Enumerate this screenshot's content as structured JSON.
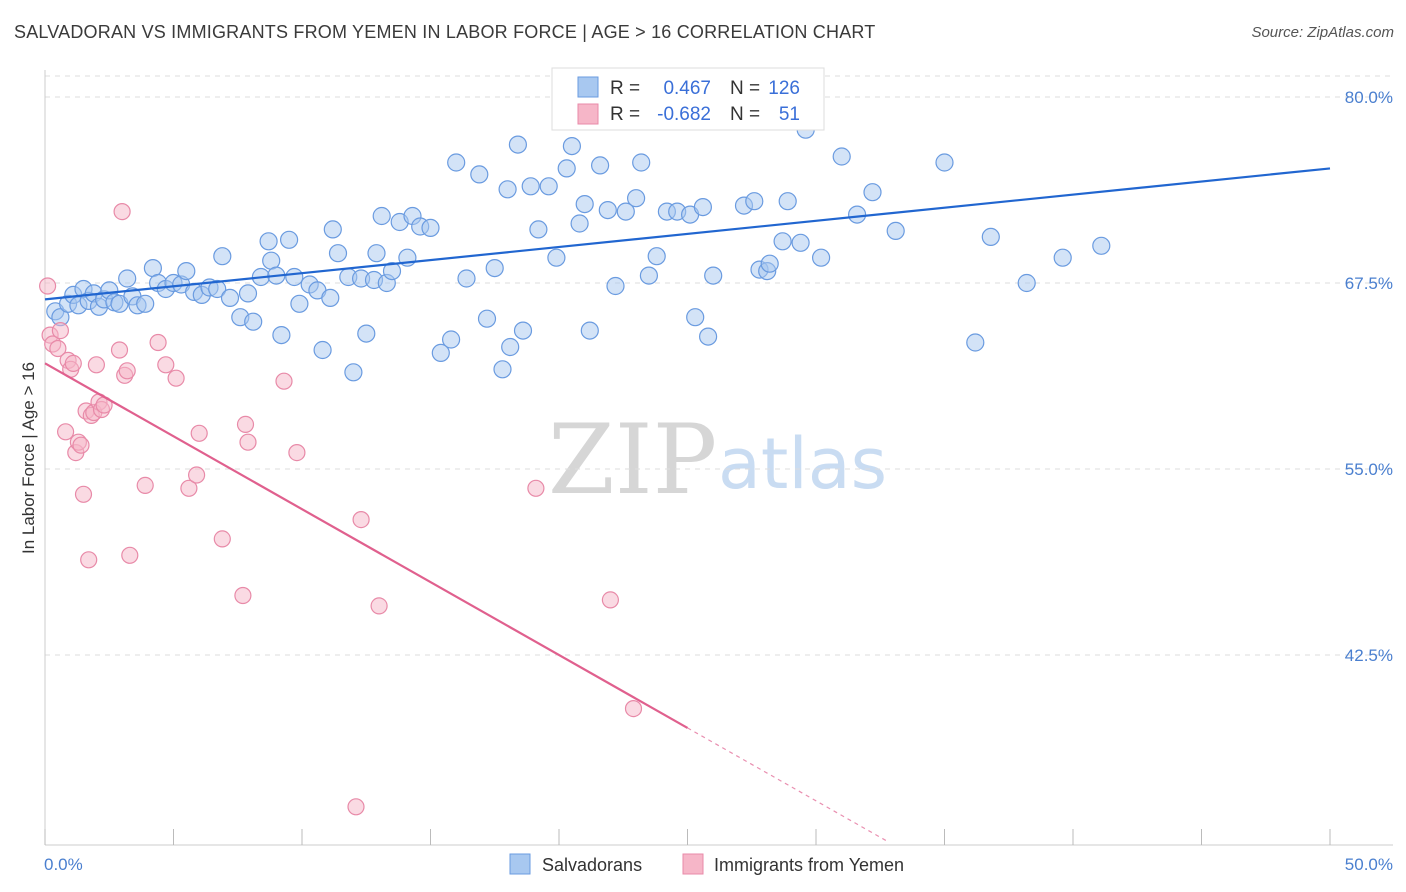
{
  "title": "SALVADORAN VS IMMIGRANTS FROM YEMEN IN LABOR FORCE | AGE > 16 CORRELATION CHART",
  "source": "Source: ZipAtlas.com",
  "watermark": {
    "zip": "ZIP",
    "atlas": "atlas"
  },
  "colors": {
    "blue_fill": "#a8c8f0",
    "blue_stroke": "#6a9be0",
    "blue_line": "#2166d0",
    "pink_fill": "#f6b6c8",
    "pink_stroke": "#e88aa8",
    "pink_line": "#e0608e",
    "axis_text": "#4a7fcf",
    "grid": "#dddddd"
  },
  "legend": {
    "rows": [
      {
        "r_label": "R =",
        "r_value": "0.467",
        "n_label": "N =",
        "n_value": "126"
      },
      {
        "r_label": "R =",
        "r_value": "-0.682",
        "n_label": "N =",
        "n_value": "51"
      }
    ]
  },
  "bottom_legend": [
    "Salvadorans",
    "Immigrants from Yemen"
  ],
  "chart_data": {
    "type": "scatter",
    "title": "SALVADORAN VS IMMIGRANTS FROM YEMEN IN LABOR FORCE | AGE > 16 CORRELATION CHART",
    "xlabel": "",
    "ylabel": "In Labor Force | Age > 16",
    "xlim": [
      0,
      50
    ],
    "ylim": [
      30,
      81
    ],
    "x_tick_labels": [
      "0.0%",
      "50.0%"
    ],
    "y_ticks": [
      42.5,
      55.0,
      67.5,
      80.0
    ],
    "y_tick_labels": [
      "42.5%",
      "55.0%",
      "67.5%",
      "80.0%"
    ],
    "grid": true,
    "legend_position": "top-center",
    "series": [
      {
        "name": "Salvadorans",
        "color": "#a8c8f0",
        "trend": {
          "x": [
            0,
            50
          ],
          "y": [
            66.4,
            75.2
          ]
        },
        "points": [
          [
            0.4,
            65.6
          ],
          [
            0.6,
            65.2
          ],
          [
            0.9,
            66.1
          ],
          [
            1.1,
            66.7
          ],
          [
            1.3,
            66.0
          ],
          [
            1.5,
            67.1
          ],
          [
            1.7,
            66.3
          ],
          [
            1.9,
            66.8
          ],
          [
            2.1,
            65.9
          ],
          [
            2.3,
            66.4
          ],
          [
            2.5,
            67.0
          ],
          [
            2.7,
            66.2
          ],
          [
            2.9,
            66.1
          ],
          [
            3.2,
            67.8
          ],
          [
            3.4,
            66.6
          ],
          [
            3.6,
            66.0
          ],
          [
            3.9,
            66.1
          ],
          [
            4.2,
            68.5
          ],
          [
            4.4,
            67.5
          ],
          [
            4.7,
            67.1
          ],
          [
            5.0,
            67.5
          ],
          [
            5.3,
            67.4
          ],
          [
            5.5,
            68.3
          ],
          [
            5.8,
            66.9
          ],
          [
            6.1,
            66.7
          ],
          [
            6.4,
            67.2
          ],
          [
            6.7,
            67.1
          ],
          [
            6.9,
            69.3
          ],
          [
            7.2,
            66.5
          ],
          [
            7.6,
            65.2
          ],
          [
            7.9,
            66.8
          ],
          [
            8.1,
            64.9
          ],
          [
            8.4,
            67.9
          ],
          [
            8.7,
            70.3
          ],
          [
            8.8,
            69.0
          ],
          [
            9.0,
            68.0
          ],
          [
            9.2,
            64.0
          ],
          [
            9.5,
            70.4
          ],
          [
            9.7,
            67.9
          ],
          [
            9.9,
            66.1
          ],
          [
            10.3,
            67.4
          ],
          [
            10.6,
            67.0
          ],
          [
            10.8,
            63.0
          ],
          [
            11.1,
            66.5
          ],
          [
            11.2,
            71.1
          ],
          [
            11.4,
            69.5
          ],
          [
            11.8,
            67.9
          ],
          [
            12.0,
            61.5
          ],
          [
            12.3,
            67.8
          ],
          [
            12.5,
            64.1
          ],
          [
            12.8,
            67.7
          ],
          [
            12.9,
            69.5
          ],
          [
            13.1,
            72.0
          ],
          [
            13.3,
            67.5
          ],
          [
            13.5,
            68.3
          ],
          [
            13.8,
            71.6
          ],
          [
            14.1,
            69.2
          ],
          [
            14.3,
            72.0
          ],
          [
            14.6,
            71.3
          ],
          [
            15.0,
            71.2
          ],
          [
            15.4,
            62.8
          ],
          [
            15.8,
            63.7
          ],
          [
            16.0,
            75.6
          ],
          [
            16.4,
            67.8
          ],
          [
            16.9,
            74.8
          ],
          [
            17.2,
            65.1
          ],
          [
            17.5,
            68.5
          ],
          [
            17.8,
            61.7
          ],
          [
            18.0,
            73.8
          ],
          [
            18.1,
            63.2
          ],
          [
            18.4,
            76.8
          ],
          [
            18.6,
            64.3
          ],
          [
            18.9,
            74.0
          ],
          [
            19.2,
            71.1
          ],
          [
            19.6,
            74.0
          ],
          [
            19.9,
            69.2
          ],
          [
            20.3,
            75.2
          ],
          [
            20.5,
            76.7
          ],
          [
            20.8,
            71.5
          ],
          [
            21.0,
            72.8
          ],
          [
            21.2,
            64.3
          ],
          [
            21.6,
            75.4
          ],
          [
            21.9,
            72.4
          ],
          [
            22.2,
            67.3
          ],
          [
            22.6,
            72.3
          ],
          [
            23.0,
            73.2
          ],
          [
            23.2,
            75.6
          ],
          [
            23.5,
            68.0
          ],
          [
            23.8,
            69.3
          ],
          [
            24.2,
            72.3
          ],
          [
            24.6,
            72.3
          ],
          [
            25.1,
            72.1
          ],
          [
            25.3,
            65.2
          ],
          [
            25.6,
            72.6
          ],
          [
            25.8,
            63.9
          ],
          [
            26.0,
            68.0
          ],
          [
            27.2,
            72.7
          ],
          [
            27.6,
            73.0
          ],
          [
            27.8,
            68.4
          ],
          [
            28.1,
            68.3
          ],
          [
            28.2,
            68.8
          ],
          [
            28.7,
            70.3
          ],
          [
            28.9,
            73.0
          ],
          [
            29.4,
            70.2
          ],
          [
            29.6,
            77.8
          ],
          [
            30.2,
            69.2
          ],
          [
            31.0,
            76.0
          ],
          [
            31.6,
            72.1
          ],
          [
            32.2,
            73.6
          ],
          [
            33.1,
            71.0
          ],
          [
            35.0,
            75.6
          ],
          [
            36.2,
            63.5
          ],
          [
            36.8,
            70.6
          ],
          [
            38.2,
            67.5
          ],
          [
            39.6,
            69.2
          ],
          [
            41.1,
            70.0
          ]
        ]
      },
      {
        "name": "Immigrants from Yemen",
        "color": "#f6b6c8",
        "trend": {
          "x": [
            0,
            25
          ],
          "y": [
            62.1,
            37.6
          ]
        },
        "points": [
          [
            0.1,
            67.3
          ],
          [
            0.2,
            64.0
          ],
          [
            0.3,
            63.4
          ],
          [
            0.5,
            63.1
          ],
          [
            0.6,
            64.3
          ],
          [
            0.8,
            57.5
          ],
          [
            0.9,
            62.3
          ],
          [
            1.0,
            61.7
          ],
          [
            1.1,
            62.1
          ],
          [
            1.2,
            56.1
          ],
          [
            1.3,
            56.8
          ],
          [
            1.4,
            56.6
          ],
          [
            1.5,
            53.3
          ],
          [
            1.6,
            58.9
          ],
          [
            1.7,
            48.9
          ],
          [
            1.8,
            58.6
          ],
          [
            1.9,
            58.8
          ],
          [
            2.0,
            62.0
          ],
          [
            2.1,
            59.5
          ],
          [
            2.2,
            59.0
          ],
          [
            2.3,
            59.3
          ],
          [
            2.9,
            63.0
          ],
          [
            3.0,
            72.3
          ],
          [
            3.1,
            61.3
          ],
          [
            3.2,
            61.6
          ],
          [
            3.3,
            49.2
          ],
          [
            3.9,
            53.9
          ],
          [
            4.4,
            63.5
          ],
          [
            4.7,
            62.0
          ],
          [
            5.1,
            61.1
          ],
          [
            5.6,
            53.7
          ],
          [
            5.9,
            54.6
          ],
          [
            6.0,
            57.4
          ],
          [
            6.9,
            50.3
          ],
          [
            7.7,
            46.5
          ],
          [
            7.8,
            58.0
          ],
          [
            7.9,
            56.8
          ],
          [
            9.3,
            60.9
          ],
          [
            9.8,
            56.1
          ],
          [
            12.1,
            32.3
          ],
          [
            12.3,
            51.6
          ],
          [
            13.0,
            45.8
          ],
          [
            19.1,
            53.7
          ],
          [
            22.0,
            46.2
          ],
          [
            22.9,
            38.9
          ]
        ]
      }
    ]
  }
}
